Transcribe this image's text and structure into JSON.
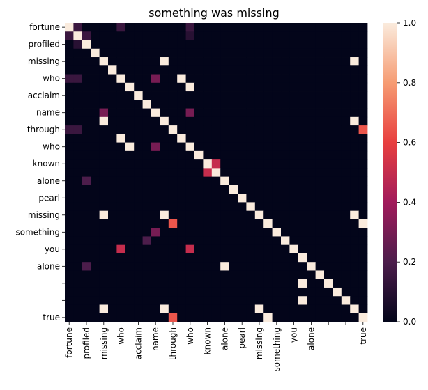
{
  "chart_data": {
    "type": "heatmap",
    "title": "something was missing",
    "row_labels": [
      "fortune",
      "",
      "profiled",
      "",
      "missing",
      "",
      "who",
      "",
      "acclaim",
      "",
      "name",
      "",
      "through",
      "",
      "who",
      "",
      "known",
      "",
      "alone",
      "",
      "pearl",
      "",
      "missing",
      "",
      "something",
      "",
      "you",
      "",
      "alone",
      "",
      "",
      "",
      "",
      "",
      "true"
    ],
    "col_labels": [
      "fortune",
      "",
      "profiled",
      "",
      "missing",
      "",
      "who",
      "",
      "acclaim",
      "",
      "name",
      "",
      "through",
      "",
      "who",
      "",
      "known",
      "",
      "alone",
      "",
      "pearl",
      "",
      "missing",
      "",
      "something",
      "",
      "you",
      "",
      "alone",
      "",
      "",
      "",
      "",
      "",
      "true"
    ],
    "colorbar": {
      "min": 0.0,
      "max": 1.0,
      "ticks": [
        0.0,
        0.2,
        0.4,
        0.6,
        0.8,
        1.0
      ]
    },
    "colormap": "rocket",
    "values": [
      [
        1,
        0.15,
        0,
        0,
        0,
        0,
        0.15,
        0,
        0,
        0,
        0,
        0,
        0,
        0,
        0.15,
        0,
        0,
        0,
        0,
        0,
        0,
        0,
        0,
        0,
        0,
        0,
        0,
        0,
        0,
        0,
        0,
        0,
        0,
        0,
        0
      ],
      [
        0.15,
        1,
        0.15,
        0,
        0,
        0,
        0,
        0,
        0,
        0,
        0,
        0,
        0,
        0,
        0.1,
        0,
        0,
        0,
        0,
        0,
        0,
        0,
        0,
        0,
        0,
        0,
        0,
        0,
        0,
        0,
        0,
        0,
        0,
        0,
        0
      ],
      [
        0,
        0.1,
        1,
        0,
        0,
        0,
        0,
        0,
        0,
        0,
        0,
        0,
        0,
        0,
        0,
        0,
        0,
        0,
        0,
        0,
        0,
        0,
        0,
        0,
        0,
        0,
        0,
        0,
        0,
        0,
        0,
        0,
        0,
        0,
        0
      ],
      [
        0,
        0,
        0,
        1,
        0,
        0,
        0,
        0,
        0,
        0,
        0,
        0,
        0,
        0,
        0,
        0,
        0,
        0,
        0,
        0,
        0,
        0,
        0,
        0,
        0,
        0,
        0,
        0,
        0,
        0,
        0,
        0,
        0,
        0,
        0
      ],
      [
        0,
        0,
        0,
        0,
        1,
        0,
        0,
        0,
        0,
        0,
        0,
        1,
        0,
        0,
        0,
        0,
        0,
        0,
        0,
        0,
        0,
        0,
        0,
        0,
        0,
        0,
        0,
        0,
        0,
        0,
        0,
        0,
        0,
        1,
        0
      ],
      [
        0,
        0,
        0,
        0,
        0,
        1,
        0,
        0,
        0,
        0,
        0,
        0,
        0,
        0,
        0,
        0,
        0,
        0,
        0,
        0,
        0,
        0,
        0,
        0,
        0,
        0,
        0,
        0,
        0,
        0,
        0,
        0,
        0,
        0,
        0
      ],
      [
        0.15,
        0.15,
        0,
        0,
        0,
        0,
        1,
        0,
        0,
        0,
        0.3,
        0,
        0,
        1,
        0,
        0,
        0,
        0,
        0,
        0,
        0,
        0,
        0,
        0,
        0,
        0,
        0,
        0,
        0,
        0,
        0,
        0,
        0,
        0,
        0
      ],
      [
        0,
        0,
        0,
        0,
        0,
        0,
        0,
        1,
        0,
        0,
        0,
        0,
        0,
        0,
        1,
        0,
        0,
        0,
        0,
        0,
        0,
        0,
        0,
        0,
        0,
        0,
        0,
        0,
        0,
        0,
        0,
        0,
        0,
        0,
        0
      ],
      [
        0,
        0,
        0,
        0,
        0,
        0,
        0,
        0,
        1,
        0,
        0,
        0,
        0,
        0,
        0,
        0,
        0,
        0,
        0,
        0,
        0,
        0,
        0,
        0,
        0,
        0,
        0,
        0,
        0,
        0,
        0,
        0,
        0,
        0,
        0
      ],
      [
        0,
        0,
        0,
        0,
        0,
        0,
        0,
        0,
        0,
        1,
        0,
        0,
        0,
        0,
        0,
        0,
        0,
        0,
        0,
        0,
        0,
        0,
        0,
        0,
        0,
        0,
        0,
        0,
        0,
        0,
        0,
        0,
        0,
        0,
        0
      ],
      [
        0,
        0,
        0,
        0,
        0.3,
        0,
        0,
        0,
        0,
        0,
        1,
        0,
        0,
        0,
        0.3,
        0,
        0,
        0,
        0,
        0,
        0,
        0,
        0,
        0,
        0,
        0,
        0,
        0,
        0,
        0,
        0,
        0,
        0,
        0,
        0
      ],
      [
        0,
        0,
        0,
        0,
        1,
        0,
        0,
        0,
        0,
        0,
        0,
        1,
        0,
        0,
        0,
        0,
        0,
        0,
        0,
        0,
        0,
        0,
        0,
        0,
        0,
        0,
        0,
        0,
        0,
        0,
        0,
        0,
        0,
        1,
        0
      ],
      [
        0.15,
        0.15,
        0,
        0,
        0,
        0,
        0,
        0,
        0,
        0,
        0,
        0,
        1,
        0,
        0,
        0,
        0,
        0,
        0,
        0,
        0,
        0,
        0,
        0,
        0,
        0,
        0,
        0,
        0,
        0,
        0,
        0,
        0,
        0,
        0.65
      ],
      [
        0,
        0,
        0,
        0,
        0,
        0,
        1,
        0,
        0,
        0,
        0,
        0,
        0,
        1,
        0,
        0,
        0,
        0,
        0,
        0,
        0,
        0,
        0,
        0,
        0,
        0,
        0,
        0,
        0,
        0,
        0,
        0,
        0,
        0,
        0
      ],
      [
        0,
        0,
        0,
        0,
        0,
        0,
        0,
        1,
        0,
        0,
        0.3,
        0,
        0,
        0,
        1,
        0,
        0,
        0,
        0,
        0,
        0,
        0,
        0,
        0,
        0,
        0,
        0,
        0,
        0,
        0,
        0,
        0,
        0,
        0,
        0
      ],
      [
        0,
        0,
        0,
        0,
        0,
        0,
        0,
        0,
        0,
        0,
        0,
        0,
        0,
        0,
        0,
        1,
        0,
        0,
        0,
        0,
        0,
        0,
        0,
        0,
        0,
        0,
        0,
        0,
        0,
        0,
        0,
        0,
        0,
        0,
        0
      ],
      [
        0,
        0,
        0,
        0,
        0,
        0,
        0,
        0,
        0,
        0,
        0,
        0,
        0,
        0,
        0,
        0,
        1,
        0.5,
        0,
        0,
        0,
        0,
        0,
        0,
        0,
        0,
        0,
        0,
        0,
        0,
        0,
        0,
        0,
        0,
        0
      ],
      [
        0,
        0,
        0,
        0,
        0,
        0,
        0,
        0,
        0,
        0,
        0,
        0,
        0,
        0,
        0,
        0,
        0.5,
        1,
        0,
        0,
        0,
        0,
        0,
        0,
        0,
        0,
        0,
        0,
        0,
        0,
        0,
        0,
        0,
        0,
        0
      ],
      [
        0,
        0,
        0.2,
        0,
        0,
        0,
        0,
        0,
        0,
        0,
        0,
        0,
        0,
        0,
        0,
        0,
        0,
        0,
        1,
        0,
        0,
        0,
        0,
        0,
        0,
        0,
        0,
        0,
        0,
        0,
        0,
        0,
        0,
        0,
        0
      ],
      [
        0,
        0,
        0,
        0,
        0,
        0,
        0,
        0,
        0,
        0,
        0,
        0,
        0,
        0,
        0,
        0,
        0,
        0,
        0,
        1,
        0,
        0,
        0,
        0,
        0,
        0,
        0,
        0,
        0,
        0,
        0,
        0,
        0,
        0,
        0
      ],
      [
        0,
        0,
        0,
        0,
        0,
        0,
        0,
        0,
        0,
        0,
        0,
        0,
        0,
        0,
        0,
        0,
        0,
        0,
        0,
        0,
        1,
        0,
        0,
        0,
        0,
        0,
        0,
        0,
        0,
        0,
        0,
        0,
        0,
        0,
        0
      ],
      [
        0,
        0,
        0,
        0,
        0,
        0,
        0,
        0,
        0,
        0,
        0,
        0,
        0,
        0,
        0,
        0,
        0,
        0,
        0,
        0,
        0,
        1,
        0,
        0,
        0,
        0,
        0,
        0,
        0,
        0,
        0,
        0,
        0,
        0,
        0
      ],
      [
        0,
        0,
        0,
        0,
        1,
        0,
        0,
        0,
        0,
        0,
        0,
        1,
        0,
        0,
        0,
        0,
        0,
        0,
        0,
        0,
        0,
        0,
        1,
        0,
        0,
        0,
        0,
        0,
        0,
        0,
        0,
        0,
        0,
        1,
        0
      ],
      [
        0,
        0,
        0,
        0,
        0,
        0,
        0,
        0,
        0,
        0,
        0,
        0,
        0.65,
        0,
        0,
        0,
        0,
        0,
        0,
        0,
        0,
        0,
        0,
        1,
        0,
        0,
        0,
        0,
        0,
        0,
        0,
        0,
        0,
        0,
        1
      ],
      [
        0,
        0,
        0,
        0,
        0,
        0,
        0,
        0,
        0,
        0,
        0.3,
        0,
        0,
        0,
        0,
        0,
        0,
        0,
        0,
        0,
        0,
        0,
        0,
        0,
        1,
        0,
        0,
        0,
        0,
        0,
        0,
        0,
        0,
        0,
        0
      ],
      [
        0,
        0,
        0,
        0,
        0,
        0,
        0,
        0,
        0,
        0.2,
        0,
        0,
        0,
        0,
        0,
        0,
        0,
        0,
        0,
        0,
        0,
        0,
        0,
        0,
        0,
        1,
        0,
        0,
        0,
        0,
        0,
        0,
        0,
        0,
        0
      ],
      [
        0,
        0,
        0,
        0,
        0,
        0,
        0.5,
        0,
        0,
        0,
        0,
        0,
        0,
        0,
        0.5,
        0,
        0,
        0,
        0,
        0,
        0,
        0,
        0,
        0,
        0,
        0,
        1,
        0,
        0,
        0,
        0,
        0,
        0,
        0,
        0
      ],
      [
        0,
        0,
        0,
        0,
        0,
        0,
        0,
        0,
        0,
        0,
        0,
        0,
        0,
        0,
        0,
        0,
        0,
        0,
        0,
        0,
        0,
        0,
        0,
        0,
        0,
        0,
        0,
        1,
        0,
        0,
        0,
        0,
        0,
        0,
        0
      ],
      [
        0,
        0,
        0.2,
        0,
        0,
        0,
        0,
        0,
        0,
        0,
        0,
        0,
        0,
        0,
        0,
        0,
        0,
        0,
        1,
        0,
        0,
        0,
        0,
        0,
        0,
        0,
        0,
        0,
        1,
        0,
        0,
        0,
        0,
        0,
        0
      ],
      [
        0,
        0,
        0,
        0,
        0,
        0,
        0,
        0,
        0,
        0,
        0,
        0,
        0,
        0,
        0,
        0,
        0,
        0,
        0,
        0,
        0,
        0,
        0,
        0,
        0,
        0,
        0,
        0,
        0,
        1,
        0,
        0,
        0,
        0,
        0
      ],
      [
        0,
        0,
        0,
        0,
        0,
        0,
        0,
        0,
        0,
        0,
        0,
        0,
        0,
        0,
        0,
        0,
        0,
        0,
        0,
        0,
        0,
        0,
        0,
        0,
        0,
        0,
        0,
        1,
        0,
        0,
        1,
        0,
        0,
        0,
        0
      ],
      [
        0,
        0,
        0,
        0,
        0,
        0,
        0,
        0,
        0,
        0,
        0,
        0,
        0,
        0,
        0,
        0,
        0,
        0,
        0,
        0,
        0,
        0,
        0,
        0,
        0,
        0,
        0,
        0,
        0,
        0,
        0,
        1,
        0,
        0,
        0
      ],
      [
        0,
        0,
        0,
        0,
        0,
        0,
        0,
        0,
        0,
        0,
        0,
        0,
        0,
        0,
        0,
        0,
        0,
        0,
        0,
        0,
        0,
        0,
        0,
        0,
        0,
        0,
        0,
        1,
        0,
        0,
        0,
        0,
        1,
        0,
        0
      ],
      [
        0,
        0,
        0,
        0,
        1,
        0,
        0,
        0,
        0,
        0,
        0,
        1,
        0,
        0,
        0,
        0,
        0,
        0,
        0,
        0,
        0,
        0,
        1,
        0,
        0,
        0,
        0,
        0,
        0,
        0,
        0,
        0,
        0,
        1,
        0
      ],
      [
        0,
        0,
        0,
        0,
        0,
        0,
        0,
        0,
        0,
        0,
        0,
        0,
        0.65,
        0,
        0,
        0,
        0,
        0,
        0,
        0,
        0,
        0,
        0,
        1,
        0,
        0,
        0,
        0,
        0,
        0,
        0,
        0,
        0,
        0,
        1
      ]
    ]
  }
}
